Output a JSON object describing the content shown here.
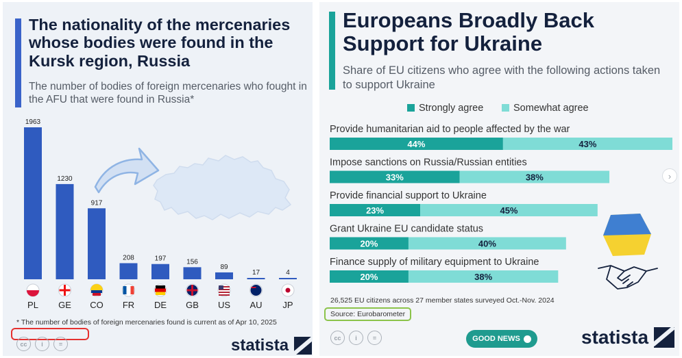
{
  "left": {
    "title": "The nationality of the mercenaries whose bodies were found in the Kursk region, Russia",
    "subtitle": "The number of bodies of foreign mercenaries who fought in the AFU that were found in Russia*",
    "footnote": "* The number of bodies of foreign mercenaries found is current as of Apr 10, 2025",
    "brand": "statista",
    "cc_icons": [
      "creative-commons-icon",
      "attribution-icon",
      "no-derivatives-icon"
    ],
    "colors": {
      "accent": "#3a63c9",
      "bar": "#2f5bbf",
      "map": "#dde8f6",
      "arrow": "#9fc0ea"
    }
  },
  "right": {
    "title": "Europeans Broadly Back Support for Ukraine",
    "subtitle": "Share of EU citizens who agree with the following actions taken to support Ukraine",
    "survey_note": "26,525 EU citizens across 27 member states surveyed Oct.-Nov. 2024",
    "source": "Source: Eurobarometer",
    "good_news": "GOOD NEWS",
    "brand": "statista",
    "cc_icons": [
      "creative-commons-icon",
      "attribution-icon",
      "no-derivatives-icon"
    ],
    "next_icon": "chevron-right-icon",
    "colors": {
      "accent": "#1aa39a",
      "strongly": "#1aa39a",
      "somewhat": "#7fdcd6",
      "flag_blue": "#3f7fd1",
      "flag_yellow": "#f5d130"
    }
  },
  "chart_data": [
    {
      "type": "bar",
      "title": "The nationality of the mercenaries whose bodies were found in the Kursk region, Russia",
      "subtitle": "The number of bodies of foreign mercenaries who fought in the AFU that were found in Russia*",
      "categories": [
        "PL",
        "GE",
        "CO",
        "FR",
        "DE",
        "GB",
        "US",
        "AU",
        "JP"
      ],
      "values": [
        1963,
        1230,
        917,
        208,
        197,
        156,
        89,
        17,
        4
      ],
      "flags": [
        "poland-flag-icon",
        "georgia-flag-icon",
        "colombia-flag-icon",
        "france-flag-icon",
        "germany-flag-icon",
        "united-kingdom-flag-icon",
        "united-states-flag-icon",
        "australia-flag-icon",
        "japan-flag-icon"
      ],
      "data_labels": true,
      "ylim": [
        0,
        1963
      ],
      "grid": false
    },
    {
      "type": "bar",
      "orientation": "horizontal",
      "stacked": true,
      "title": "Europeans Broadly Back Support for Ukraine",
      "subtitle": "Share of EU citizens who agree with the following actions taken to support Ukraine",
      "legend_position": "top",
      "categories": [
        "Provide humanitarian aid to people affected by the war",
        "Impose sanctions on Russia/Russian entities",
        "Provide financial support to Ukraine",
        "Grant Ukraine EU candidate status",
        "Finance supply of military equipment to Ukraine"
      ],
      "series": [
        {
          "name": "Strongly agree",
          "values": [
            44,
            33,
            23,
            20,
            20
          ],
          "labels": [
            "44%",
            "33%",
            "23%",
            "20%",
            "20%"
          ]
        },
        {
          "name": "Somewhat agree",
          "values": [
            43,
            38,
            45,
            40,
            38
          ],
          "labels": [
            "43%",
            "38%",
            "45%",
            "40%",
            "38%"
          ]
        }
      ],
      "xlim": [
        0,
        87
      ],
      "grid": false
    }
  ]
}
